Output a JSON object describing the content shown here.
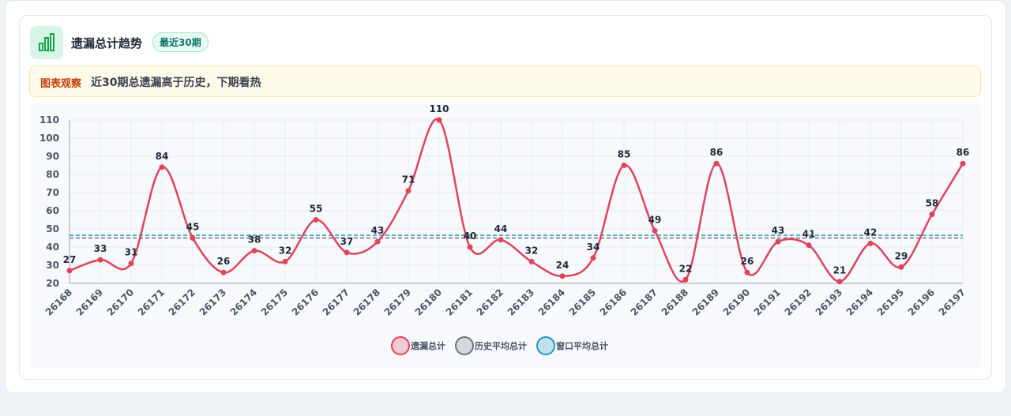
{
  "header": {
    "title": "遗漏总计趋势",
    "badge": "最近30期"
  },
  "note": {
    "label": "图表观察",
    "text": "近30期总遗漏高于历史，下期看热"
  },
  "chart_data": {
    "type": "line",
    "categories": [
      "26168",
      "26169",
      "26170",
      "26171",
      "26172",
      "26173",
      "26174",
      "26175",
      "26176",
      "26177",
      "26178",
      "26179",
      "26180",
      "26181",
      "26182",
      "26183",
      "26184",
      "26185",
      "26186",
      "26187",
      "26188",
      "26189",
      "26190",
      "26191",
      "26192",
      "26193",
      "26194",
      "26195",
      "26196",
      "26197"
    ],
    "series": [
      {
        "name": "遗漏总计",
        "color": "#e0435c",
        "values": [
          27,
          33,
          31,
          84,
          45,
          26,
          38,
          32,
          55,
          37,
          43,
          71,
          110,
          40,
          44,
          32,
          24,
          34,
          85,
          49,
          22,
          86,
          26,
          43,
          41,
          21,
          42,
          29,
          58,
          86
        ]
      },
      {
        "name": "历史平均总计",
        "color": "#6b7280",
        "values": [
          45,
          45,
          45,
          45,
          45,
          45,
          45,
          45,
          45,
          45,
          45,
          45,
          45,
          45,
          45,
          45,
          45,
          45,
          45,
          45,
          45,
          45,
          45,
          45,
          45,
          45,
          45,
          45,
          45,
          45
        ]
      },
      {
        "name": "窗口平均总计",
        "color": "#1a9bc0",
        "values": [
          46.5,
          46.5,
          46.5,
          46.5,
          46.5,
          46.5,
          46.5,
          46.5,
          46.5,
          46.5,
          46.5,
          46.5,
          46.5,
          46.5,
          46.5,
          46.5,
          46.5,
          46.5,
          46.5,
          46.5,
          46.5,
          46.5,
          46.5,
          46.5,
          46.5,
          46.5,
          46.5,
          46.5,
          46.5,
          46.5
        ]
      }
    ],
    "ylim": [
      20,
      110
    ],
    "yticks": [
      20,
      30,
      40,
      50,
      60,
      70,
      80,
      90,
      100,
      110
    ],
    "grid": true
  }
}
